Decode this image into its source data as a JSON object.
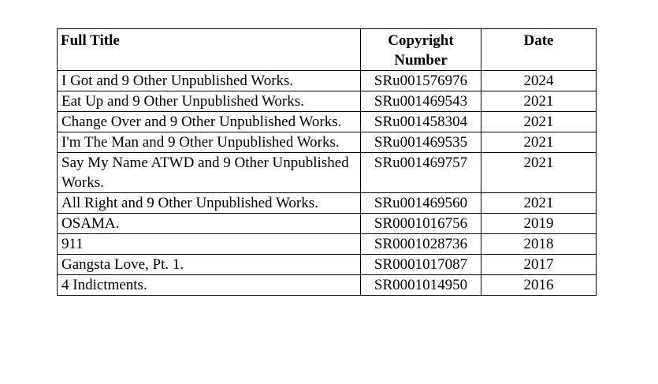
{
  "table": {
    "headers": [
      "Full Title",
      "Copyright Number",
      "Date"
    ],
    "rows": [
      {
        "title": "I Got and 9 Other Unpublished Works.",
        "number": "SRu001576976",
        "date": "2024"
      },
      {
        "title": "Eat Up and 9 Other Unpublished Works.",
        "number": "SRu001469543",
        "date": "2021"
      },
      {
        "title": "Change Over and 9 Other Unpublished Works.",
        "number": "SRu001458304",
        "date": "2021"
      },
      {
        "title": "I'm The Man and 9 Other Unpublished Works.",
        "number": "SRu001469535",
        "date": "2021"
      },
      {
        "title": "Say My Name ATWD and 9 Other Unpublished Works.",
        "number": "SRu001469757",
        "date": "2021"
      },
      {
        "title": "All Right and 9 Other Unpublished Works.",
        "number": "SRu001469560",
        "date": "2021"
      },
      {
        "title": "OSAMA.",
        "number": "SR0001016756",
        "date": "2019"
      },
      {
        "title": "911",
        "number": "SR0001028736",
        "date": "2018"
      },
      {
        "title": "Gangsta Love, Pt. 1.",
        "number": "SR0001017087",
        "date": "2017"
      },
      {
        "title": "4 Indictments.",
        "number": "SR0001014950",
        "date": "2016"
      }
    ]
  }
}
